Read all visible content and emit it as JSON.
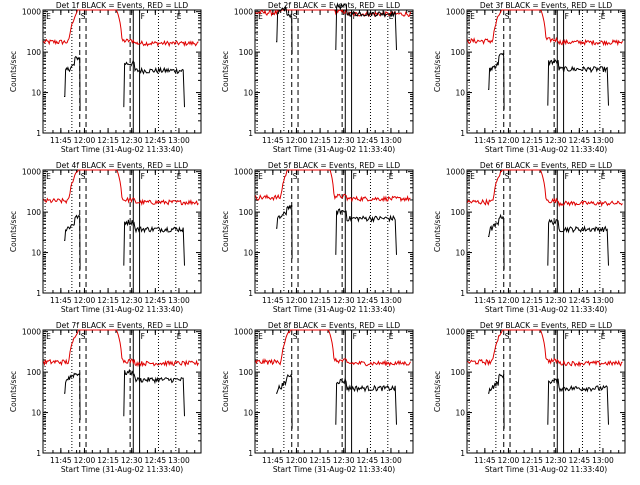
{
  "figure": {
    "x_tick_labels": [
      "11:45",
      "12:00",
      "12:15",
      "12:30",
      "12:45",
      "13:00"
    ],
    "x_tick_minutes": [
      705,
      720,
      735,
      750,
      765,
      780
    ],
    "y_tick_labels": [
      "1000",
      "100",
      "10",
      "1"
    ],
    "y_tick_values": [
      1000,
      100,
      10,
      1
    ],
    "ylabel": "Counts/sec",
    "xlabel": "Start Time (31-Aug-02 11:33:40)",
    "x_range_minutes": [
      693.67,
      794
    ],
    "y_range": [
      1,
      1100
    ],
    "y_scale": "log",
    "colors": {
      "events": "#000000",
      "lld": "#e00000",
      "axes": "#000000"
    },
    "markers": [
      {
        "label": "E",
        "time": "11:35",
        "minute": 695,
        "style": "dotted"
      },
      {
        "label": "S",
        "time": "11:57",
        "minute": 717,
        "style": "dashed"
      },
      {
        "label": "F",
        "time": "12:35",
        "minute": 755,
        "style": "solid"
      },
      {
        "label": "E",
        "time": "12:58",
        "minute": 778,
        "style": "dotted"
      }
    ],
    "extra_lines": [
      {
        "minute": 712,
        "style": "dotted"
      },
      {
        "minute": 721,
        "style": "dashed"
      },
      {
        "minute": 749,
        "style": "dashed"
      },
      {
        "minute": 751,
        "style": "solid"
      },
      {
        "minute": 767,
        "style": "dotted"
      }
    ]
  },
  "chart_data": [
    {
      "type": "line",
      "title": "Det 1f BLACK = Events, RED = LLD",
      "events_level": 35,
      "lld_level": 170,
      "events_start": 8,
      "events_hump": 75
    },
    {
      "type": "line",
      "title": "Det 2f BLACK = Events, RED = LLD",
      "events_level": 900,
      "lld_level": 900,
      "events_start": 180,
      "events_hump": 850
    },
    {
      "type": "line",
      "title": "Det 3f BLACK = Events, RED = LLD",
      "events_level": 38,
      "lld_level": 180,
      "events_start": 12,
      "events_hump": 90
    },
    {
      "type": "line",
      "title": "Det 4f BLACK = Events, RED = LLD",
      "events_level": 38,
      "lld_level": 180,
      "events_start": 20,
      "events_hump": 80
    },
    {
      "type": "line",
      "title": "Det 5f BLACK = Events, RED = LLD",
      "events_level": 70,
      "lld_level": 220,
      "events_start": 40,
      "events_hump": 140
    },
    {
      "type": "line",
      "title": "Det 6f BLACK = Events, RED = LLD",
      "events_level": 38,
      "lld_level": 170,
      "events_start": 25,
      "events_hump": 80
    },
    {
      "type": "line",
      "title": "Det 7f BLACK = Events, RED = LLD",
      "events_level": 65,
      "lld_level": 170,
      "events_start": 30,
      "events_hump": 95
    },
    {
      "type": "line",
      "title": "Det 8f BLACK = Events, RED = LLD",
      "events_level": 40,
      "lld_level": 170,
      "events_start": 30,
      "events_hump": 85
    },
    {
      "type": "line",
      "title": "Det 9f BLACK = Events, RED = LLD",
      "events_level": 40,
      "lld_level": 170,
      "events_start": 30,
      "events_hump": 85
    }
  ]
}
